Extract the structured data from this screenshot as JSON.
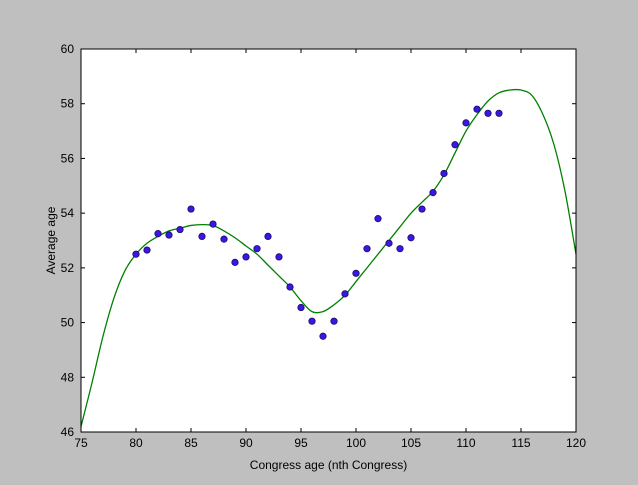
{
  "chart_data": {
    "type": "scatter",
    "title": "",
    "xlabel": "Congress age (nth Congress)",
    "ylabel": "Average age",
    "xlim": [
      75,
      120
    ],
    "ylim": [
      46,
      60
    ],
    "xticks": [
      75,
      80,
      85,
      90,
      95,
      100,
      105,
      110,
      115,
      120
    ],
    "yticks": [
      46,
      48,
      50,
      52,
      54,
      56,
      58,
      60
    ],
    "grid": false,
    "legend": "none",
    "colors": {
      "figure_background": "#bfbfbf",
      "plot_background": "#ffffff",
      "points_fill": "#3b17e6",
      "points_edge": "#1a0a66",
      "curve": "#008000"
    },
    "series": [
      {
        "kind": "points",
        "x": [
          80,
          81,
          82,
          83,
          84,
          85,
          86,
          87,
          88,
          89,
          90,
          91,
          92,
          93,
          94,
          95,
          96,
          97,
          98,
          99,
          100,
          101,
          102,
          103,
          104,
          105,
          106,
          107,
          108,
          109,
          110,
          111,
          112,
          113
        ],
        "y": [
          52.5,
          52.65,
          53.25,
          53.2,
          53.4,
          54.15,
          53.15,
          53.6,
          53.05,
          52.2,
          52.4,
          52.7,
          53.15,
          52.4,
          51.3,
          50.55,
          50.05,
          49.5,
          50.05,
          51.05,
          51.8,
          52.7,
          53.8,
          52.9,
          52.7,
          53.1,
          54.15,
          54.75,
          55.45,
          56.5,
          57.3,
          57.8,
          57.65,
          57.65
        ]
      },
      {
        "kind": "fit-curve",
        "x": [
          75,
          76,
          77,
          78,
          79,
          80,
          81,
          82,
          83,
          84,
          85,
          86,
          87,
          88,
          89,
          90,
          91,
          92,
          93,
          94,
          95,
          96,
          97,
          98,
          99,
          100,
          101,
          102,
          103,
          104,
          105,
          106,
          107,
          108,
          109,
          110,
          111,
          112,
          113,
          114,
          115,
          116,
          117,
          118,
          119,
          120
        ],
        "y": [
          46.2,
          47.8,
          49.5,
          50.9,
          51.9,
          52.5,
          52.9,
          53.15,
          53.35,
          53.45,
          53.55,
          53.58,
          53.55,
          53.35,
          53.1,
          52.8,
          52.5,
          52.1,
          51.7,
          51.3,
          50.8,
          50.4,
          50.4,
          50.65,
          51.0,
          51.5,
          52.0,
          52.5,
          53.0,
          53.5,
          54.0,
          54.4,
          54.8,
          55.4,
          56.2,
          57.0,
          57.6,
          58.1,
          58.4,
          58.5,
          58.5,
          58.3,
          57.6,
          56.5,
          54.8,
          52.5
        ]
      }
    ]
  }
}
